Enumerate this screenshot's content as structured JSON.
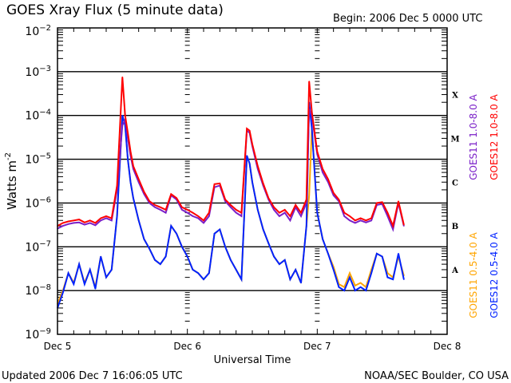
{
  "chart_data": {
    "type": "line",
    "title": "GOES Xray Flux (5 minute data)",
    "begin_label": "Begin:  2006 Dec 5 0000 UTC",
    "xlabel": "Universal Time",
    "ylabel": "Watts m",
    "ylabel_sup": "-2",
    "x_unit": "hours since 2006 Dec 5 0000 UTC",
    "xlim": [
      0,
      72
    ],
    "ylim": [
      1e-09,
      0.01
    ],
    "yscale": "log",
    "grid": true,
    "x_ticks": [
      {
        "value": 0,
        "label": "Dec 5"
      },
      {
        "value": 24,
        "label": "Dec 6"
      },
      {
        "value": 48,
        "label": "Dec 7"
      },
      {
        "value": 72,
        "label": "Dec 8"
      }
    ],
    "y_ticks": [
      {
        "value": 0.01,
        "base": "10",
        "exp": "-2"
      },
      {
        "value": 0.001,
        "base": "10",
        "exp": "-3"
      },
      {
        "value": 0.0001,
        "base": "10",
        "exp": "-4"
      },
      {
        "value": 1e-05,
        "base": "10",
        "exp": "-5"
      },
      {
        "value": 1e-06,
        "base": "10",
        "exp": "-6"
      },
      {
        "value": 1e-07,
        "base": "10",
        "exp": "-7"
      },
      {
        "value": 1e-08,
        "base": "10",
        "exp": "-8"
      },
      {
        "value": 1e-09,
        "base": "10",
        "exp": "-9"
      }
    ],
    "flare_classes": [
      {
        "label": "X",
        "value": 0.0003
      },
      {
        "label": "M",
        "value": 3e-05
      },
      {
        "label": "C",
        "value": 3e-06
      },
      {
        "label": "B",
        "value": 3e-07
      },
      {
        "label": "A",
        "value": 3e-08
      }
    ],
    "legend_right": [
      {
        "label": "GOES11 1.0-8.0 A",
        "color": "#7a1fc8"
      },
      {
        "label": "GOES12 1.0-8.0 A",
        "color": "#ff0000"
      }
    ],
    "legend_bottom": [
      {
        "label": "GOES11 0.5-4.0 A",
        "color": "#ffa500"
      },
      {
        "label": "GOES12 0.5-4.0 A",
        "color": "#0022ff"
      }
    ],
    "series": [
      {
        "name": "GOES11 1.0-8.0 A",
        "color": "#7a1fc8",
        "x": [
          0,
          1,
          2,
          3,
          4,
          5,
          6,
          7,
          8,
          9,
          10,
          11,
          12,
          12.5,
          13,
          13.5,
          14,
          15,
          16,
          17,
          18,
          19,
          20,
          21,
          22,
          23,
          24,
          25,
          26,
          27,
          28,
          29,
          30,
          31,
          32,
          33,
          34,
          35,
          35.5,
          36,
          37,
          38,
          39,
          40,
          41,
          42,
          43,
          44,
          45,
          46,
          46.5,
          47,
          48,
          49,
          50,
          51,
          52,
          53,
          54,
          55,
          56,
          57,
          58,
          59,
          60,
          61,
          62,
          63,
          64
        ],
        "y": [
          2.6e-07,
          3e-07,
          3.3e-07,
          3.5e-07,
          3.6e-07,
          3.2e-07,
          3.5e-07,
          3.1e-07,
          4e-07,
          4.5e-07,
          4e-07,
          2e-06,
          6e-05,
          8e-05,
          3e-05,
          1.2e-05,
          6e-06,
          3e-06,
          1.6e-06,
          1e-06,
          8e-07,
          7e-07,
          6e-07,
          1.5e-06,
          1.2e-06,
          7e-07,
          6e-07,
          5e-07,
          4.5e-07,
          3.5e-07,
          5e-07,
          2.3e-06,
          2.5e-06,
          1.1e-06,
          8e-07,
          6e-07,
          5e-07,
          4.5e-05,
          4e-05,
          2e-05,
          6e-06,
          2.5e-06,
          1.2e-06,
          7e-07,
          5e-07,
          6e-07,
          4e-07,
          8e-07,
          5e-07,
          1e-06,
          0.00014,
          0.0001,
          1.3e-05,
          5e-06,
          3e-06,
          1.5e-06,
          1.1e-06,
          5e-07,
          4e-07,
          3.5e-07,
          4e-07,
          3.6e-07,
          4e-07,
          9e-07,
          9.5e-07,
          5e-07,
          2.5e-07,
          1e-06,
          3e-07
        ],
        "flux_unit": "W m-2"
      },
      {
        "name": "GOES12 1.0-8.0 A",
        "color": "#ff0000",
        "x": [
          0,
          1,
          2,
          3,
          4,
          5,
          6,
          7,
          8,
          9,
          10,
          11,
          12,
          12.5,
          13,
          13.5,
          14,
          15,
          16,
          17,
          18,
          19,
          20,
          21,
          22,
          23,
          24,
          25,
          26,
          27,
          28,
          29,
          30,
          31,
          32,
          33,
          34,
          35,
          35.5,
          36,
          37,
          38,
          39,
          40,
          41,
          42,
          43,
          44,
          45,
          46,
          46.5,
          47,
          48,
          49,
          50,
          51,
          52,
          53,
          54,
          55,
          56,
          57,
          58,
          59,
          60,
          61,
          62,
          63,
          64
        ],
        "y": [
          3e-07,
          3.5e-07,
          3.8e-07,
          4e-07,
          4.2e-07,
          3.6e-07,
          4e-07,
          3.5e-07,
          4.5e-07,
          5e-07,
          4.5e-07,
          2.5e-06,
          0.00075,
          0.0001,
          4e-05,
          1.5e-05,
          7e-06,
          3.5e-06,
          1.8e-06,
          1.1e-06,
          9e-07,
          8e-07,
          7e-07,
          1.6e-06,
          1.3e-06,
          8e-07,
          7e-07,
          6e-07,
          5e-07,
          4e-07,
          6e-07,
          2.7e-06,
          2.8e-06,
          1.2e-06,
          9e-07,
          7e-07,
          6e-07,
          5e-05,
          4.5e-05,
          2.2e-05,
          7e-06,
          2.8e-06,
          1.3e-06,
          8e-07,
          6e-07,
          7e-07,
          5e-07,
          9e-07,
          6e-07,
          1.2e-06,
          0.0006,
          0.00012,
          1.5e-05,
          6e-06,
          3.5e-06,
          1.7e-06,
          1.2e-06,
          6e-07,
          5e-07,
          4e-07,
          4.5e-07,
          4e-07,
          4.5e-07,
          1e-06,
          1.05e-06,
          6e-07,
          3e-07,
          1.1e-06,
          3.2e-07
        ],
        "flux_unit": "W m-2"
      },
      {
        "name": "GOES11 0.5-4.0 A",
        "color": "#ffa500",
        "x": [
          0,
          1,
          2,
          3,
          4,
          5,
          6,
          7,
          8,
          9,
          10,
          11,
          12,
          12.5,
          13,
          13.5,
          14,
          15,
          16,
          17,
          18,
          19,
          20,
          21,
          22,
          23,
          24,
          25,
          26,
          27,
          28,
          29,
          30,
          31,
          32,
          33,
          34,
          35,
          35.5,
          36,
          37,
          38,
          39,
          40,
          41,
          42,
          43,
          44,
          45,
          46,
          46.5,
          47,
          48,
          49,
          50,
          51,
          52,
          53,
          54,
          55,
          56,
          57,
          58,
          59,
          60,
          61,
          62,
          63,
          64
        ],
        "y": [
          5e-09,
          1e-08,
          2.5e-08,
          1.5e-08,
          4e-08,
          1.5e-08,
          3e-08,
          1.2e-08,
          6e-08,
          2e-08,
          3e-08,
          5e-07,
          0.0001,
          6e-05,
          1e-05,
          3e-06,
          1.3e-06,
          4e-07,
          1.5e-07,
          9e-08,
          5e-08,
          4e-08,
          6e-08,
          3e-07,
          2e-07,
          1e-07,
          6e-08,
          3e-08,
          2.5e-08,
          1.8e-08,
          2.5e-08,
          2e-07,
          2.5e-07,
          1e-07,
          5e-08,
          3e-08,
          1.8e-08,
          1.2e-05,
          8e-06,
          3e-06,
          7e-07,
          2.5e-07,
          1.2e-07,
          6e-08,
          4e-08,
          5e-08,
          1.8e-08,
          3e-08,
          1.5e-08,
          3e-07,
          1.5e-06,
          5e-05,
          6e-07,
          1.5e-07,
          7e-08,
          3.5e-08,
          1.4e-08,
          1.2e-08,
          2.5e-08,
          1.3e-08,
          1.5e-08,
          1.2e-08,
          3e-08,
          7e-08,
          6e-08,
          2.5e-08,
          2e-08,
          6e-08,
          2.2e-08
        ],
        "flux_unit": "W m-2"
      },
      {
        "name": "GOES12 0.5-4.0 A",
        "color": "#0022ff",
        "x": [
          0,
          1,
          2,
          3,
          4,
          5,
          6,
          7,
          8,
          9,
          10,
          11,
          12,
          12.5,
          13,
          13.5,
          14,
          15,
          16,
          17,
          18,
          19,
          20,
          21,
          22,
          23,
          24,
          25,
          26,
          27,
          28,
          29,
          30,
          31,
          32,
          33,
          34,
          35,
          35.5,
          36,
          37,
          38,
          39,
          40,
          41,
          42,
          43,
          44,
          45,
          46,
          46.5,
          47,
          48,
          49,
          50,
          51,
          52,
          53,
          54,
          55,
          56,
          57,
          58,
          59,
          60,
          61,
          62,
          63,
          64
        ],
        "y": [
          4e-09,
          9e-09,
          2.5e-08,
          1.4e-08,
          4e-08,
          1.4e-08,
          3e-08,
          1.1e-08,
          6e-08,
          2e-08,
          3e-08,
          5e-07,
          0.0001,
          6e-05,
          1e-05,
          3e-06,
          1.3e-06,
          4e-07,
          1.5e-07,
          9e-08,
          5e-08,
          4e-08,
          6e-08,
          3e-07,
          2e-07,
          1e-07,
          6e-08,
          3e-08,
          2.5e-08,
          1.8e-08,
          2.5e-08,
          2e-07,
          2.5e-07,
          1e-07,
          5e-08,
          3e-08,
          1.8e-08,
          1.2e-05,
          8e-06,
          3e-06,
          7e-07,
          2.5e-07,
          1.2e-07,
          6e-08,
          4e-08,
          5e-08,
          1.8e-08,
          3e-08,
          1.5e-08,
          3e-07,
          0.0002,
          5e-05,
          6e-07,
          1.5e-07,
          7e-08,
          3e-08,
          1.2e-08,
          1e-08,
          2e-08,
          1e-08,
          1.2e-08,
          1e-08,
          2.5e-08,
          7e-08,
          6e-08,
          2e-08,
          1.8e-08,
          7e-08,
          1.8e-08
        ],
        "flux_unit": "W m-2"
      }
    ]
  },
  "footer": {
    "updated": "Updated 2006 Dec  7 16:06:05 UTC",
    "credit": "NOAA/SEC Boulder, CO USA"
  }
}
